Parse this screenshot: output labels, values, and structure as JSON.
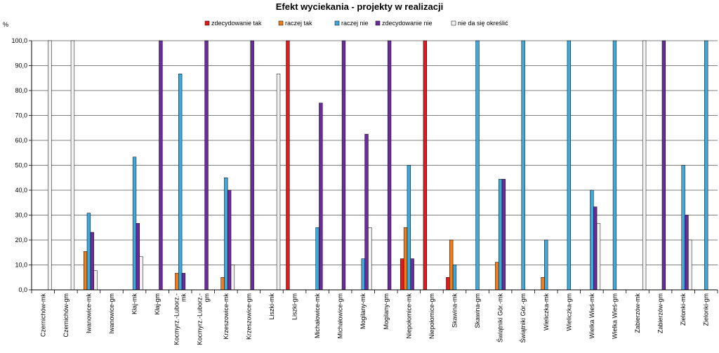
{
  "chart_data": {
    "type": "bar",
    "title": "Efekt wyciekania - projekty w realizacji",
    "ylabel": "%",
    "xlabel": "",
    "ylim": [
      0,
      100
    ],
    "yticks": [
      "0,0",
      "10,0",
      "20,0",
      "30,0",
      "40,0",
      "50,0",
      "60,0",
      "70,0",
      "80,0",
      "90,0",
      "100,0"
    ],
    "legend_position": "top",
    "categories": [
      "Czernichów-mk",
      "Czernichów-gm",
      "Iwanowice-mk",
      "Iwanowice-gm",
      "Kłaj-mk",
      "Kłaj-gm",
      "Kocmyrz.-Luborz.-mk",
      "Kocmyrz.-Luborz.-gm",
      "Krzeszowice-mk",
      "Krzeszowice-gm",
      "Liszki-mk",
      "Liszki-gm",
      "Michałowice-mk",
      "Michałowice-gm",
      "Mogilany-mk",
      "Mogilany-gm",
      "Niepołomice-mk",
      "Niepołomice-gm",
      "Skawina-mk",
      "Skawina-gm",
      "Świątniki Gór.-mk",
      "Świątniki Gór.-gm",
      "Wieliczka-mk",
      "Wieliczka-gm",
      "Wielka Wieś-mk",
      "Wielka Wieś-gm",
      "Zabierzów-mk",
      "Zabierzów-gm",
      "Zielonki-mk",
      "Zielonki-gm"
    ],
    "series": [
      {
        "name": "zdecydowanie tak",
        "color": "#e31a1c",
        "values": [
          0,
          0,
          0,
          0,
          0,
          0,
          0,
          0,
          0,
          0,
          0,
          100,
          0,
          0,
          0,
          0,
          12.5,
          100,
          5,
          0,
          0,
          0,
          0,
          0,
          0,
          0,
          0,
          0,
          0,
          0
        ]
      },
      {
        "name": "raczej tak",
        "color": "#f07d1a",
        "values": [
          0,
          0,
          15.4,
          0,
          0,
          0,
          6.7,
          0,
          5,
          0,
          0,
          0,
          0,
          0,
          0,
          0,
          25,
          0,
          20,
          0,
          11.1,
          0,
          5,
          0,
          0,
          0,
          0,
          0,
          0,
          0
        ]
      },
      {
        "name": "raczej nie",
        "color": "#3fa9dc",
        "values": [
          0,
          0,
          30.8,
          0,
          53.3,
          0,
          86.7,
          0,
          45,
          0,
          0,
          0,
          25,
          0,
          12.5,
          0,
          50,
          0,
          10,
          100,
          44.4,
          100,
          20,
          100,
          40,
          100,
          0,
          0,
          50,
          100
        ]
      },
      {
        "name": "zdecydowanie nie",
        "color": "#6a2c9a",
        "values": [
          0,
          0,
          23.1,
          0,
          26.7,
          100,
          6.7,
          100,
          40,
          100,
          0,
          0,
          75,
          100,
          62.5,
          100,
          12.5,
          0,
          0,
          0,
          44.4,
          0,
          0,
          0,
          33.3,
          0,
          0,
          100,
          30,
          0
        ]
      },
      {
        "name": "nie da się określić",
        "color": "#f2f2f2",
        "values": [
          100,
          100,
          7.7,
          0,
          13.3,
          0,
          0,
          0,
          10,
          0,
          86.7,
          0,
          0,
          0,
          25,
          0,
          0,
          0,
          0,
          0,
          0,
          0,
          0,
          0,
          26.7,
          0,
          100,
          0,
          20,
          0
        ]
      }
    ]
  }
}
